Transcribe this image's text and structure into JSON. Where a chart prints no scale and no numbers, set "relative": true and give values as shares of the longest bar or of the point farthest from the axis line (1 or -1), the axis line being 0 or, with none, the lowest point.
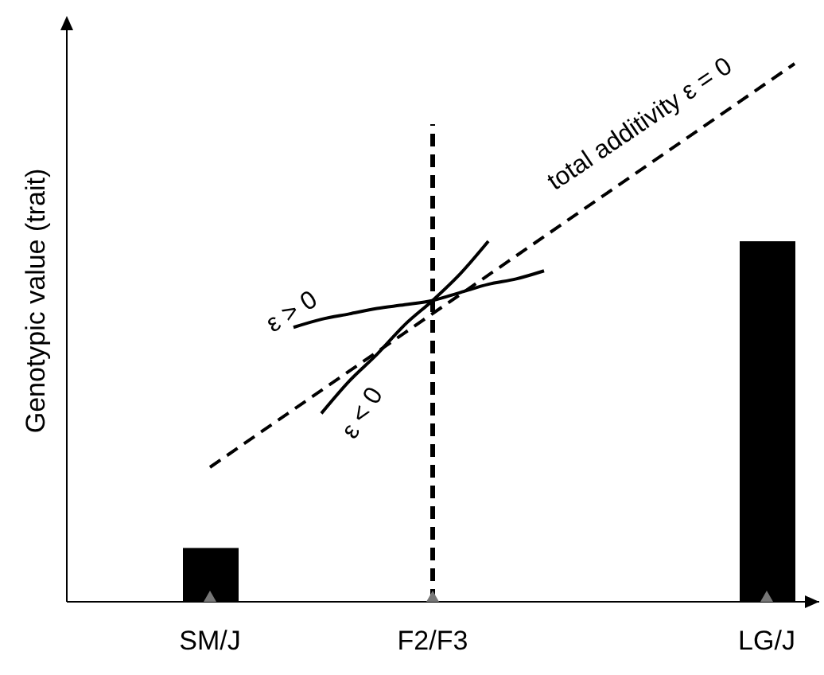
{
  "chart_data": {
    "type": "bar",
    "relative": true,
    "ylabel": "Genotypic value (trait)",
    "tick_labels": "x",
    "categories": [
      "SM/J",
      null,
      null,
      null,
      null,
      null,
      null,
      null,
      "F2/F3",
      null,
      null,
      null,
      null,
      null,
      null,
      null,
      null,
      null,
      null,
      null,
      "LG/J",
      null
    ],
    "series": [
      {
        "color": "#000000",
        "values": [
          0.1,
          null,
          null,
          null,
          null,
          null,
          null,
          null,
          null,
          null,
          null,
          null,
          null,
          null,
          null,
          null,
          null,
          null,
          null,
          null,
          0.67,
          null
        ]
      },
      {
        "type": "line",
        "color": "#000000",
        "line_style": "dashed",
        "values": [
          0.25,
          null,
          null,
          null,
          null,
          null,
          null,
          null,
          null,
          null,
          null,
          null,
          null,
          null,
          null,
          null,
          null,
          null,
          null,
          null,
          null,
          1.0
        ]
      },
      {
        "type": "line",
        "color": "#000000",
        "line_style": "solid",
        "values": [
          null,
          null,
          null,
          0.51,
          0.525,
          0.535,
          0.545,
          0.552,
          0.56,
          0.575,
          0.59,
          0.6,
          0.615,
          null,
          null,
          null,
          null,
          null,
          null,
          null,
          null,
          null
        ]
      },
      {
        "type": "line",
        "color": "#000000",
        "line_style": "solid",
        "values": [
          null,
          null,
          null,
          null,
          0.35,
          0.41,
          0.46,
          0.515,
          0.56,
          0.61,
          0.67,
          null,
          null,
          null,
          null,
          null,
          null,
          null,
          null,
          null,
          null,
          null
        ]
      }
    ],
    "ref_lines": [
      {
        "axis": "x",
        "value": "F2/F3",
        "color": "#000000",
        "line_style": "dashed"
      }
    ],
    "annotations": [
      "total additivity ε = 0",
      "ε > 0",
      "ε < 0"
    ]
  }
}
